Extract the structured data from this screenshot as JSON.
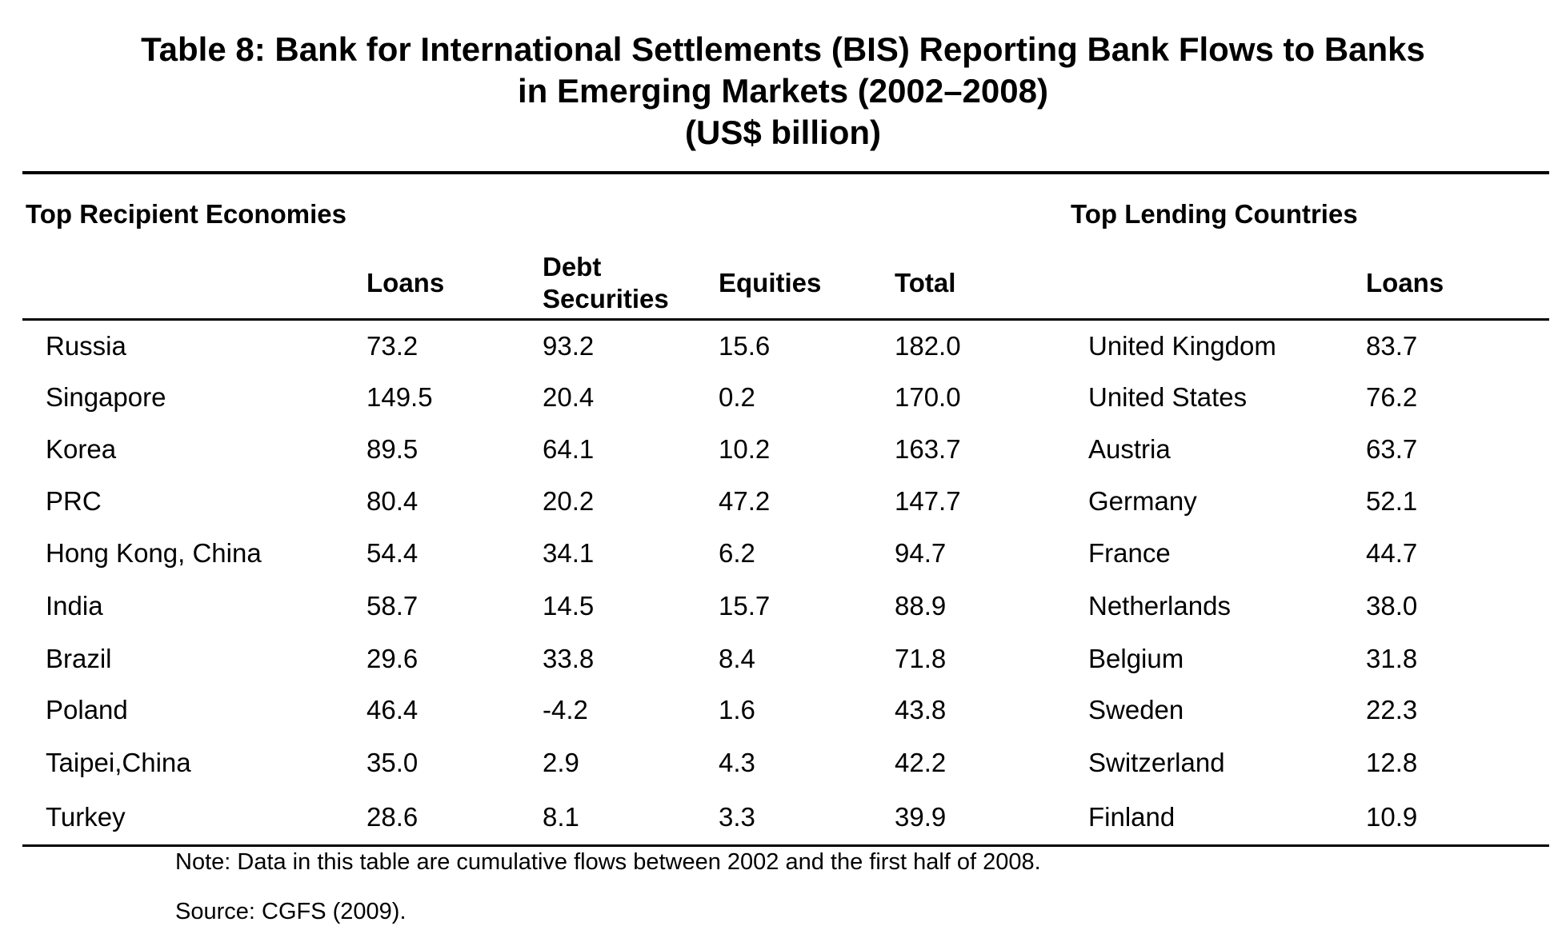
{
  "title": {
    "line1": "Table 8: Bank for International Settlements (BIS) Reporting Bank Flows to Banks",
    "line2": "in Emerging Markets (2002–2008)",
    "line3": "(US$ billion)"
  },
  "sections": {
    "recipients": "Top Recipient Economies",
    "lenders": "Top Lending Countries"
  },
  "columns": {
    "loans": "Loans",
    "debt_line1": "Debt",
    "debt_line2": "Securities",
    "equities": "Equities",
    "total": "Total",
    "lender_loans": "Loans"
  },
  "rows": [
    {
      "economy": "Russia",
      "loans": "73.2",
      "debt": "93.2",
      "equities": "15.6",
      "total": "182.0",
      "lender": "United Kingdom",
      "lender_loans": "83.7"
    },
    {
      "economy": "Singapore",
      "loans": "149.5",
      "debt": "20.4",
      "equities": "0.2",
      "total": "170.0",
      "lender": "United States",
      "lender_loans": "76.2"
    },
    {
      "economy": "Korea",
      "loans": "89.5",
      "debt": "64.1",
      "equities": "10.2",
      "total": "163.7",
      "lender": "Austria",
      "lender_loans": "63.7"
    },
    {
      "economy": "PRC",
      "loans": "80.4",
      "debt": "20.2",
      "equities": "47.2",
      "total": "147.7",
      "lender": "Germany",
      "lender_loans": "52.1"
    },
    {
      "economy": "Hong Kong, China",
      "loans": "54.4",
      "debt": "34.1",
      "equities": "6.2",
      "total": "94.7",
      "lender": "France",
      "lender_loans": "44.7"
    },
    {
      "economy": "India",
      "loans": "58.7",
      "debt": "14.5",
      "equities": "15.7",
      "total": "88.9",
      "lender": "Netherlands",
      "lender_loans": "38.0"
    },
    {
      "economy": "Brazil",
      "loans": "29.6",
      "debt": "33.8",
      "equities": "8.4",
      "total": "71.8",
      "lender": "Belgium",
      "lender_loans": "31.8"
    },
    {
      "economy": "Poland",
      "loans": "46.4",
      "debt": "-4.2",
      "equities": "1.6",
      "total": "43.8",
      "lender": "Sweden",
      "lender_loans": "22.3"
    },
    {
      "economy": "Taipei,China",
      "loans": "35.0",
      "debt": "2.9",
      "equities": "4.3",
      "total": "42.2",
      "lender": "Switzerland",
      "lender_loans": "12.8"
    },
    {
      "economy": "Turkey",
      "loans": "28.6",
      "debt": "8.1",
      "equities": "3.3",
      "total": "39.9",
      "lender": "Finland",
      "lender_loans": "10.9"
    }
  ],
  "notes": {
    "note": "Note: Data in this table are cumulative flows between 2002 and the first half of 2008.",
    "source": "Source: CGFS (2009)."
  }
}
